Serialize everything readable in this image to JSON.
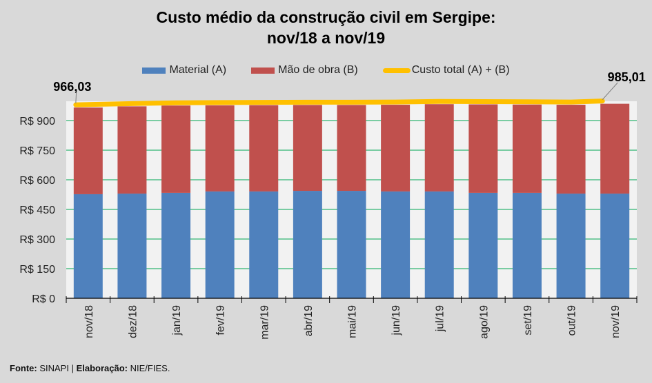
{
  "chart_data": {
    "type": "bar",
    "stacked": true,
    "title": "Custo médio da construção civil em Sergipe:",
    "subtitle": "nov/18 a nov/19",
    "xlabel": "",
    "ylabel": "",
    "categories": [
      "nov/18",
      "dez/18",
      "jan/19",
      "fev/19",
      "mar/19",
      "abr/19",
      "mai/19",
      "jun/19",
      "jul/19",
      "ago/19",
      "set/19",
      "out/19",
      "nov/19"
    ],
    "series": [
      {
        "name": "Material (A)",
        "kind": "bar",
        "color": "#4f81bd",
        "values": [
          527,
          530,
          534,
          541,
          541,
          544,
          544,
          541,
          541,
          534,
          534,
          530,
          530
        ]
      },
      {
        "name": "Mão de obra (B)",
        "kind": "bar",
        "color": "#c0504d",
        "values": [
          439.03,
          442,
          442,
          436,
          437,
          435,
          435,
          439,
          442,
          448,
          447,
          450,
          455.01
        ]
      },
      {
        "name": "Custo total (A) + (B)",
        "kind": "line",
        "color": "#ffc000",
        "values": [
          966.03,
          972,
          976,
          977,
          978,
          979,
          979,
          980,
          983,
          982,
          981,
          980,
          985.01
        ]
      }
    ],
    "yticks": [
      0,
      150,
      300,
      450,
      600,
      750,
      900
    ],
    "ytick_labels": [
      "R$ 0",
      "R$ 150",
      "R$ 300",
      "R$ 450",
      "R$ 600",
      "R$ 750",
      "R$ 900"
    ],
    "ylim": [
      0,
      1000
    ],
    "grid": true,
    "grid_color": "#00a651",
    "legend_position": "top",
    "annotations": [
      {
        "category": "nov/18",
        "series": "Custo total (A) + (B)",
        "text": "966,03"
      },
      {
        "category": "nov/19",
        "series": "Custo total (A) + (B)",
        "text": "985,01"
      }
    ]
  },
  "legend": {
    "items": [
      {
        "label": "Material (A)",
        "color": "#4f81bd",
        "type": "rect"
      },
      {
        "label": "Mão de obra (B)",
        "color": "#c0504d",
        "type": "rect"
      },
      {
        "label": "Custo total (A) + (B)",
        "color": "#ffc000",
        "type": "line"
      }
    ]
  },
  "footer": {
    "source_label": "Fonte:",
    "source_value": "SINAPI |",
    "credit_label": "Elaboração:",
    "credit_value": "NIE/FIES."
  }
}
